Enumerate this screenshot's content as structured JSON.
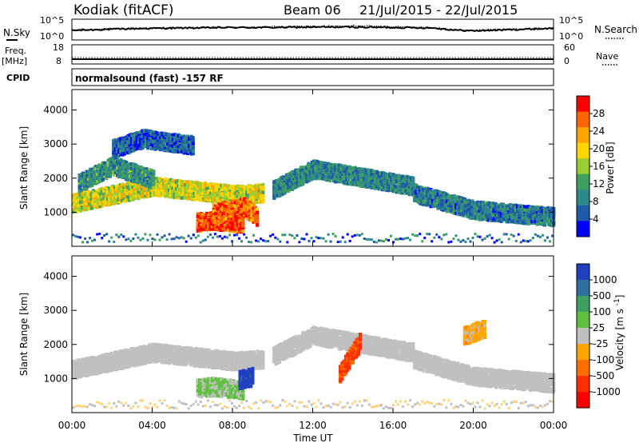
{
  "header": {
    "station": "Kodiak (fitACF)",
    "beam": "Beam 06",
    "date_range": "21/Jul/2015 - 22/Jul/2015"
  },
  "left_labels": {
    "nsky": "N.Sky",
    "freq": "Freq.",
    "freq_unit": "[MHz]",
    "cpid": "CPID"
  },
  "right_labels": {
    "nsearch": "N.Search",
    "nave": "Nave"
  },
  "cpid_text": "normalsound (fast) -157 RF",
  "noise_axis": {
    "left_ticks": [
      "10^5",
      "10^0"
    ],
    "right_ticks": [
      "10^5",
      "10^0"
    ]
  },
  "freq_axis": {
    "left_ticks": [
      "18",
      "8"
    ],
    "right_ticks": [
      "60",
      "0"
    ]
  },
  "x_axis": {
    "label": "Time UT",
    "ticks": [
      "00:00",
      "04:00",
      "08:00",
      "12:00",
      "16:00",
      "20:00",
      "00:00"
    ]
  },
  "colors": {
    "noise_sky": "#000000",
    "noise_search": "#000000",
    "ground_scatter": "#c0c0c0"
  },
  "chart_data": [
    {
      "type": "line",
      "panel": "noise",
      "series": [
        {
          "name": "N.Sky",
          "style": "solid",
          "x_hours": [
            0,
            2,
            4,
            6,
            8,
            10,
            12,
            14,
            16,
            18,
            19,
            20,
            22,
            24
          ],
          "log10_values": [
            2.3,
            2.6,
            2.8,
            2.9,
            3.0,
            3.0,
            3.1,
            3.1,
            3.0,
            2.9,
            2.4,
            2.2,
            2.5,
            2.8
          ]
        },
        {
          "name": "N.Search",
          "style": "dotted",
          "x_hours": [
            0,
            2,
            4,
            6,
            8,
            10,
            12,
            14,
            16,
            18,
            19,
            20,
            22,
            24
          ],
          "log10_values": [
            2.4,
            2.7,
            2.9,
            3.0,
            3.1,
            3.2,
            3.3,
            3.4,
            3.2,
            3.0,
            2.5,
            2.3,
            2.6,
            2.9
          ]
        }
      ],
      "ylim_left": [
        0,
        5
      ],
      "ylim_right": [
        0,
        5
      ]
    },
    {
      "type": "line",
      "panel": "frequency",
      "series": [
        {
          "name": "Freq.",
          "style": "solid",
          "x_hours": [
            0,
            24
          ],
          "values": [
            10.5,
            10.5
          ]
        },
        {
          "name": "Nave",
          "style": "dotted",
          "x_hours": [
            0,
            24
          ],
          "values": [
            20,
            20
          ]
        }
      ],
      "ylim_left": [
        8,
        18
      ],
      "ylim_right": [
        0,
        60
      ]
    },
    {
      "type": "heatmap",
      "panel": "power",
      "xlabel": "",
      "ylabel": "Slant Range [km]",
      "xlim": [
        0,
        24
      ],
      "ylim": [
        0,
        4600
      ],
      "y_ticks": [
        1000,
        2000,
        3000,
        4000
      ],
      "colorbar": {
        "label": "Power [dB]",
        "ticks": [
          4,
          8,
          12,
          16,
          20,
          24,
          28
        ],
        "range": [
          0,
          32
        ],
        "colors": [
          "#0000ff",
          "#1e5aa8",
          "#2e8a8a",
          "#3fa060",
          "#9acd32",
          "#ffd700",
          "#ffa500",
          "#ff6600",
          "#ff0000"
        ]
      },
      "features": [
        {
          "x_hours": [
            0,
            4,
            8,
            9.5
          ],
          "slant_range_km": [
            1300,
            1800,
            1550,
            1600
          ],
          "value": 18
        },
        {
          "x_hours": [
            0.3,
            2,
            4
          ],
          "slant_range_km": [
            1900,
            2400,
            2000
          ],
          "value": 10
        },
        {
          "x_hours": [
            6.2,
            7,
            8.5
          ],
          "slant_range_km": [
            750,
            800,
            700
          ],
          "value": 28
        },
        {
          "x_hours": [
            7,
            8.5,
            9.2
          ],
          "slant_range_km": [
            1000,
            1200,
            900
          ],
          "value": 26
        },
        {
          "x_hours": [
            10,
            12,
            14,
            17
          ],
          "slant_range_km": [
            1700,
            2300,
            2100,
            1800
          ],
          "value": 9
        },
        {
          "x_hours": [
            17,
            20,
            24
          ],
          "slant_range_km": [
            1600,
            1100,
            900
          ],
          "value": 8
        },
        {
          "x_hours": [
            2,
            3.5,
            6
          ],
          "slant_range_km": [
            2900,
            3200,
            3000
          ],
          "value": 6
        }
      ]
    },
    {
      "type": "heatmap",
      "panel": "velocity",
      "xlabel": "Time UT",
      "ylabel": "Slant Range [km]",
      "xlim": [
        0,
        24
      ],
      "ylim": [
        0,
        4600
      ],
      "y_ticks": [
        1000,
        2000,
        3000,
        4000
      ],
      "colorbar": {
        "label": "Velocity [m s^-1]",
        "ticks": [
          1000,
          500,
          100,
          25,
          -25,
          -100,
          -500,
          -1000
        ],
        "range": [
          -1000,
          1000
        ],
        "colors": [
          "#2040c0",
          "#3070a0",
          "#40a060",
          "#60c040",
          "#c0c0c0",
          "#ffa500",
          "#ff7000",
          "#ff3000",
          "#ff0000"
        ]
      },
      "features": [
        {
          "x_hours": [
            0,
            4,
            8,
            9.5
          ],
          "slant_range_km": [
            1300,
            1800,
            1550,
            1600
          ],
          "value": 0,
          "ground_scatter": true
        },
        {
          "x_hours": [
            10,
            12,
            14,
            17
          ],
          "slant_range_km": [
            1700,
            2300,
            2100,
            1800
          ],
          "value": 0,
          "ground_scatter": true
        },
        {
          "x_hours": [
            17,
            20,
            24
          ],
          "slant_range_km": [
            1600,
            1100,
            900
          ],
          "value": 0,
          "ground_scatter": true
        },
        {
          "x_hours": [
            6.2,
            7,
            8.5
          ],
          "slant_range_km": [
            750,
            800,
            700
          ],
          "value": 150
        },
        {
          "x_hours": [
            8.3,
            9
          ],
          "slant_range_km": [
            1000,
            1100
          ],
          "value": 900
        },
        {
          "x_hours": [
            13.3,
            14.3
          ],
          "slant_range_km": [
            1200,
            2100
          ],
          "value": -600
        },
        {
          "x_hours": [
            19.5,
            20.5
          ],
          "slant_range_km": [
            2300,
            2500
          ],
          "value": -200
        }
      ]
    }
  ]
}
